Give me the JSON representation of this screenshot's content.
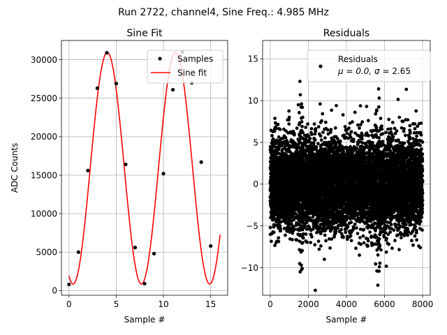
{
  "suptitle": "Run 2722, channel4, Sine Freq.: 4.985 MHz",
  "chart_data": [
    {
      "type": "scatter",
      "title": "Sine Fit",
      "xlabel": "Sample #",
      "ylabel": "ADC Counts",
      "xlim": [
        -0.8,
        16.8
      ],
      "ylim": [
        -600,
        32500
      ],
      "xticks": [
        0,
        5,
        10,
        15
      ],
      "yticks": [
        0,
        5000,
        10000,
        15000,
        20000,
        25000,
        30000
      ],
      "grid": true,
      "legend_position": "top-right",
      "series": [
        {
          "name": "Samples",
          "kind": "points",
          "color": "#000000",
          "x": [
            0,
            1,
            2,
            3,
            4,
            5,
            6,
            7,
            8,
            9,
            10,
            11,
            12,
            13,
            14,
            15
          ],
          "y": [
            800,
            5000,
            15600,
            26300,
            30900,
            26900,
            16400,
            5600,
            900,
            4800,
            15200,
            26100,
            31000,
            27000,
            16700,
            5800
          ]
        },
        {
          "name": "Sine fit",
          "kind": "line",
          "color": "#ff0000",
          "fit": {
            "offset": 15900,
            "amplitude": 15050,
            "period": 7.23,
            "peak_x": 4.05,
            "x_start": 0,
            "x_end": 16
          }
        }
      ]
    },
    {
      "type": "scatter",
      "title": "Residuals",
      "xlabel": "Sample #",
      "xlim": [
        -400,
        8400
      ],
      "ylim": [
        -13.3,
        17.2
      ],
      "xticks": [
        0,
        2000,
        4000,
        6000,
        8000
      ],
      "yticks": [
        -10,
        -5,
        0,
        5,
        10,
        15
      ],
      "grid": true,
      "legend_position": "top-right",
      "series": [
        {
          "name": "Residuals",
          "legend_line2_prefix": "μ = 0.0, ",
          "legend_line2_sigma": "σ",
          "legend_line2_suffix": " = 2.65",
          "kind": "points",
          "color": "#000000",
          "mu": 0.0,
          "sigma": 2.65,
          "n": 8000,
          "outliers": [
            {
              "x": 1560,
              "y": 12.3
            },
            {
              "x": 1580,
              "y": 10.7
            },
            {
              "x": 1640,
              "y": 9.6
            },
            {
              "x": 5640,
              "y": 13.3
            },
            {
              "x": 5690,
              "y": 11.4
            },
            {
              "x": 5720,
              "y": 10.3
            },
            {
              "x": 1570,
              "y": -10.5
            },
            {
              "x": 1630,
              "y": -9.7
            },
            {
              "x": 5650,
              "y": -12.1
            },
            {
              "x": 5600,
              "y": -10.4
            },
            {
              "x": 5730,
              "y": -9.9
            },
            {
              "x": 2620,
              "y": 9.6
            },
            {
              "x": 2660,
              "y": -7.4
            },
            {
              "x": 3470,
              "y": 9.4
            },
            {
              "x": 4680,
              "y": -8.5
            },
            {
              "x": 5060,
              "y": 9.3
            },
            {
              "x": 7920,
              "y": 7.3
            },
            {
              "x": 7880,
              "y": -7.6
            },
            {
              "x": 310,
              "y": -7.0
            },
            {
              "x": 1000,
              "y": 8.0
            },
            {
              "x": 3820,
              "y": 8.3
            },
            {
              "x": 6780,
              "y": 8.0
            },
            {
              "x": 7220,
              "y": 7.7
            },
            {
              "x": 4450,
              "y": 8.6
            }
          ]
        }
      ]
    }
  ]
}
